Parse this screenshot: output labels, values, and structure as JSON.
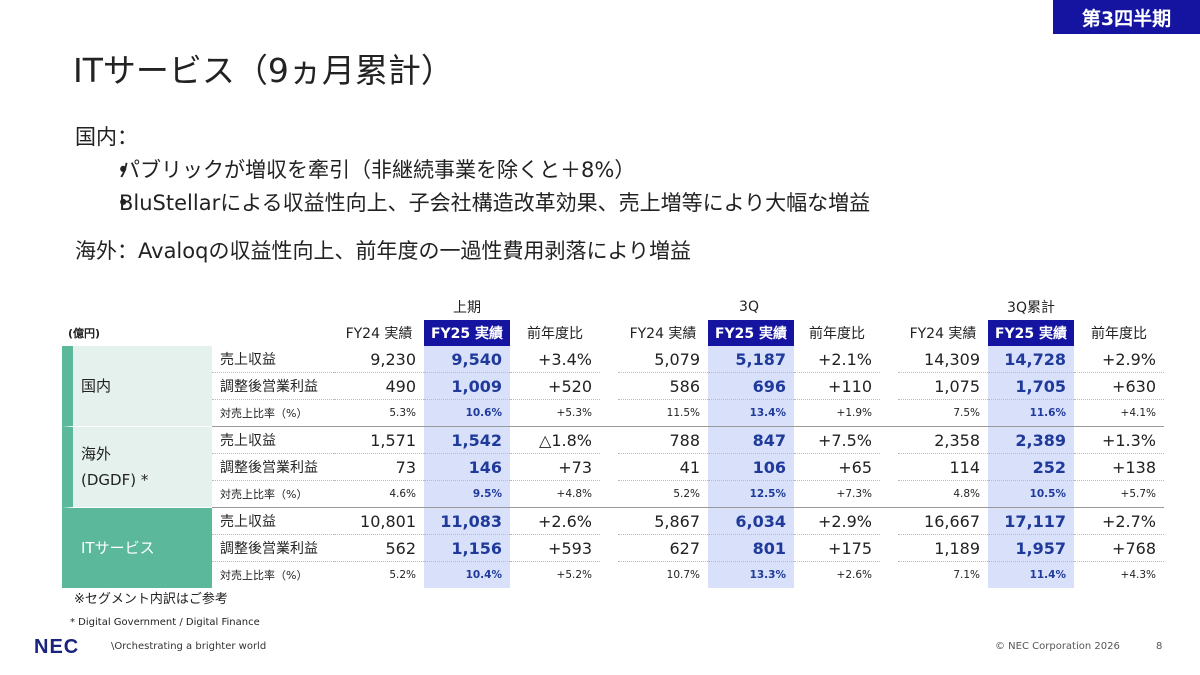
{
  "badge": "第3四半期",
  "title": "ITサービス（9ヵ月累計）",
  "domestic": {
    "heading": "国内：",
    "bullets": [
      "パブリックが増収を牽引（非継続事業を除くと＋8%）",
      "BluStellarによる収益性向上、子会社構造改革効果、売上増等により大幅な増益"
    ]
  },
  "overseas_text": "海外：Avaloqの収益性向上、前年度の一過性費用剥落により増益",
  "table": {
    "unit": "(億円)",
    "groups": [
      "上期",
      "3Q",
      "3Q累計"
    ],
    "col_headers": [
      "FY24 実績",
      "FY25 実績",
      "前年度比"
    ],
    "segments": [
      {
        "name": "国内",
        "rows": [
          {
            "metric": "売上収益",
            "values": [
              [
                "9,230",
                "9,540",
                "+3.4%"
              ],
              [
                "5,079",
                "5,187",
                "+2.1%"
              ],
              [
                "14,309",
                "14,728",
                "+2.9%"
              ]
            ]
          },
          {
            "metric": "調整後営業利益",
            "values": [
              [
                "490",
                "1,009",
                "+520"
              ],
              [
                "586",
                "696",
                "+110"
              ],
              [
                "1,075",
                "1,705",
                "+630"
              ]
            ]
          },
          {
            "metric": "対売上比率（%）",
            "values": [
              [
                "5.3%",
                "10.6%",
                "+5.3%"
              ],
              [
                "11.5%",
                "13.4%",
                "+1.9%"
              ],
              [
                "7.5%",
                "11.6%",
                "+4.1%"
              ]
            ]
          }
        ]
      },
      {
        "name": "海外",
        "name2": "(DGDF) *",
        "rows": [
          {
            "metric": "売上収益",
            "values": [
              [
                "1,571",
                "1,542",
                "△1.8%"
              ],
              [
                "788",
                "847",
                "+7.5%"
              ],
              [
                "2,358",
                "2,389",
                "+1.3%"
              ]
            ]
          },
          {
            "metric": "調整後営業利益",
            "values": [
              [
                "73",
                "146",
                "+73"
              ],
              [
                "41",
                "106",
                "+65"
              ],
              [
                "114",
                "252",
                "+138"
              ]
            ]
          },
          {
            "metric": "対売上比率（%）",
            "values": [
              [
                "4.6%",
                "9.5%",
                "+4.8%"
              ],
              [
                "5.2%",
                "12.5%",
                "+7.3%"
              ],
              [
                "4.8%",
                "10.5%",
                "+5.7%"
              ]
            ]
          }
        ]
      },
      {
        "name": "ITサービス",
        "rows": [
          {
            "metric": "売上収益",
            "values": [
              [
                "10,801",
                "11,083",
                "+2.6%"
              ],
              [
                "5,867",
                "6,034",
                "+2.9%"
              ],
              [
                "16,667",
                "17,117",
                "+2.7%"
              ]
            ]
          },
          {
            "metric": "調整後営業利益",
            "values": [
              [
                "562",
                "1,156",
                "+593"
              ],
              [
                "627",
                "801",
                "+175"
              ],
              [
                "1,189",
                "1,957",
                "+768"
              ]
            ]
          },
          {
            "metric": "対売上比率（%）",
            "values": [
              [
                "5.2%",
                "10.4%",
                "+5.2%"
              ],
              [
                "10.7%",
                "13.3%",
                "+2.6%"
              ],
              [
                "7.1%",
                "11.4%",
                "+4.3%"
              ]
            ]
          }
        ]
      }
    ]
  },
  "note": "※セグメント内訳はご参考",
  "footnote": "* Digital Government / Digital Finance",
  "footer": {
    "logo": "NEC",
    "tagline": "\\Orchestrating a brighter world",
    "copyright": "© NEC Corporation 2026",
    "page": "8"
  },
  "colors": {
    "brand_blue": "#1414a0",
    "segment_green": "#5bb89a",
    "segment_light": "#e4f1ec",
    "fy25_highlight": "#d9e1fa",
    "fy25_text": "#1f3a9a"
  }
}
